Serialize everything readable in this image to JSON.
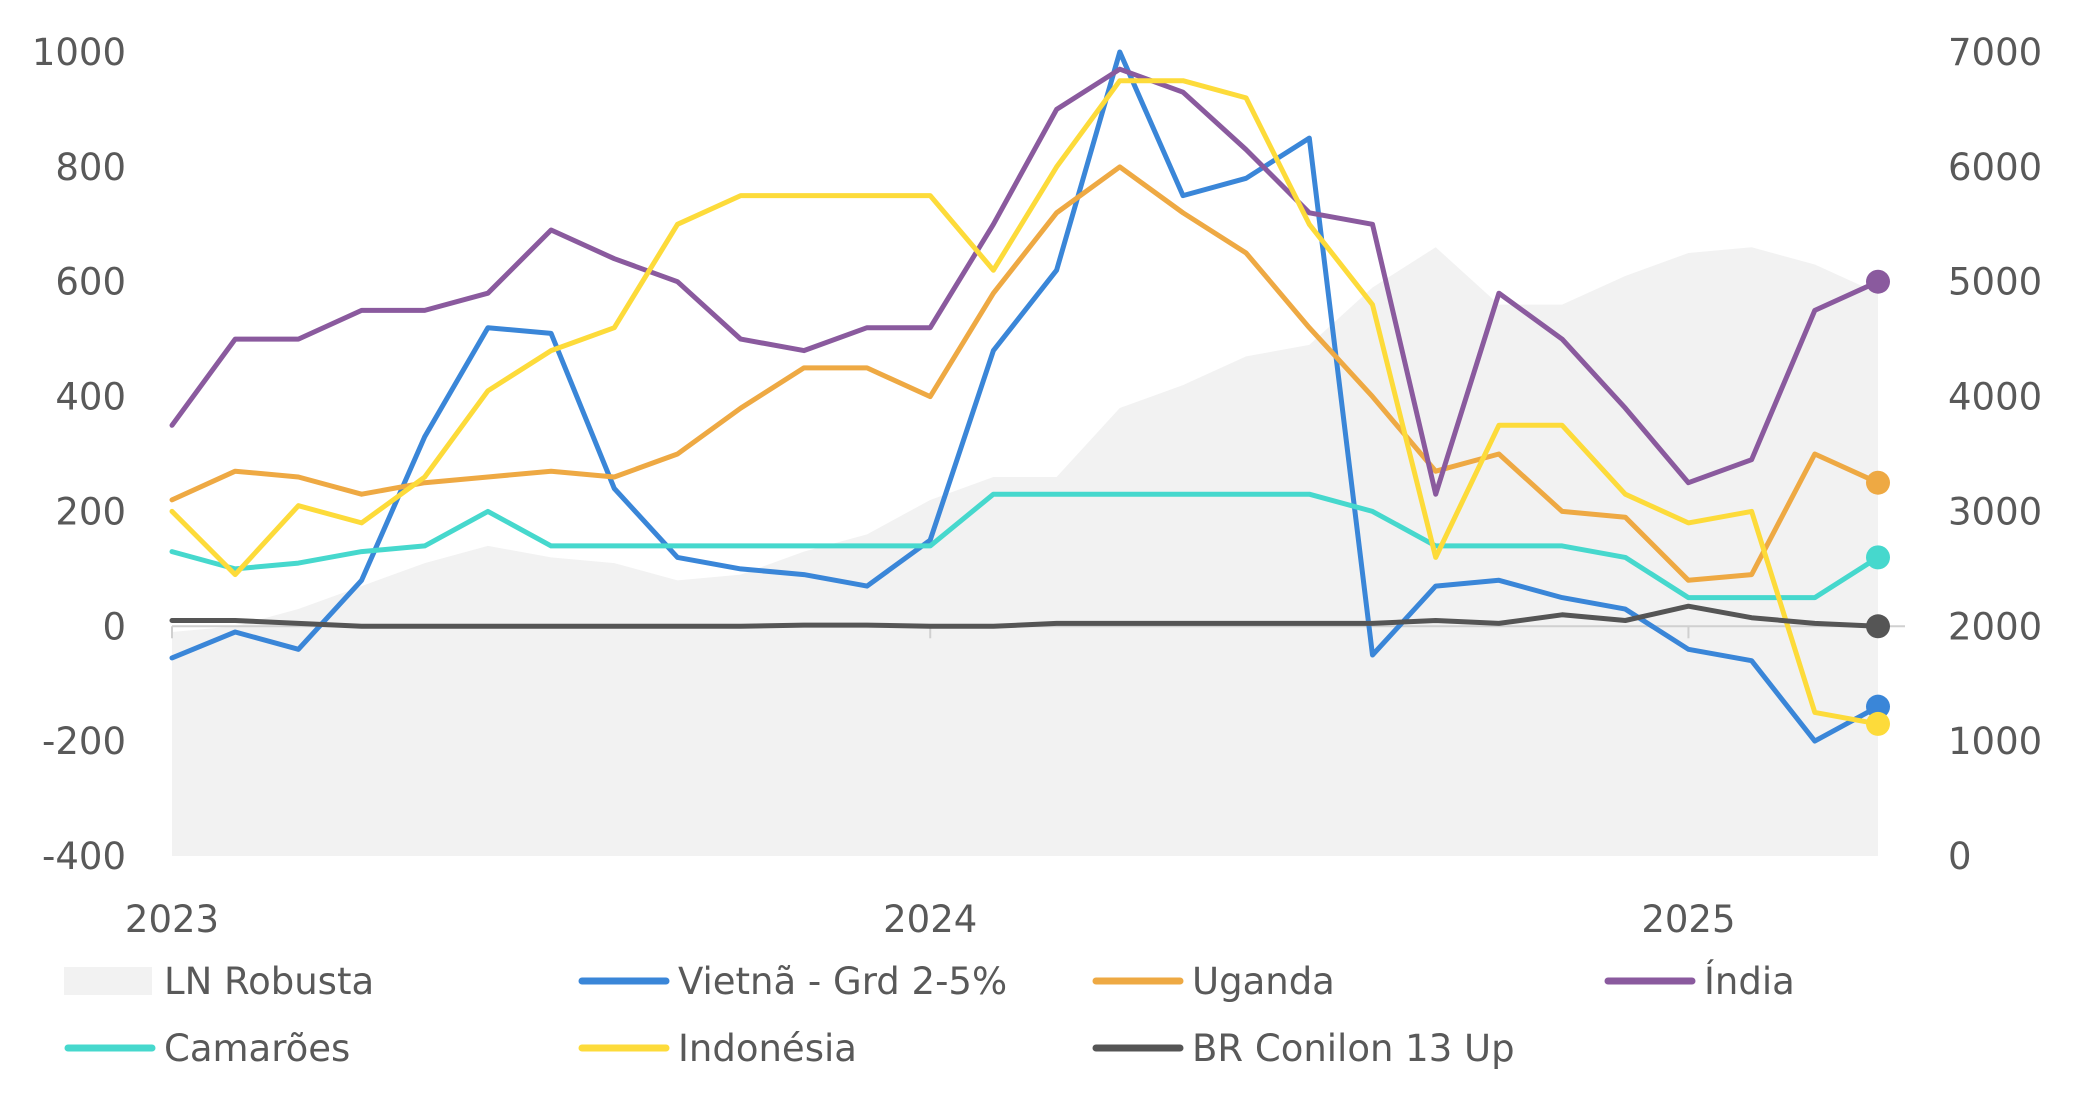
{
  "chart_data": {
    "type": "line",
    "x_start": "2023-01",
    "x_end": "2025-04",
    "x_ticks": [
      {
        "label": "2023",
        "date": "2023-01"
      },
      {
        "label": "2024",
        "date": "2024-01"
      },
      {
        "label": "2025",
        "date": "2025-01"
      }
    ],
    "y_left": {
      "ticks": [
        "1000",
        "800",
        "600",
        "400",
        "200",
        "0",
        "-200",
        "-400"
      ],
      "range": [
        -400,
        1000
      ]
    },
    "y_right": {
      "ticks": [
        "7000",
        "6000",
        "5000",
        "4000",
        "3000",
        "2000",
        "1000",
        "0"
      ],
      "range": [
        0,
        7000
      ]
    },
    "legend": [
      {
        "label": "LN Robusta",
        "color": "#f2f2f2",
        "kind": "area"
      },
      {
        "label": "Vietnã - Grd 2-5%",
        "color": "#3a86d8",
        "kind": "line"
      },
      {
        "label": "Uganda",
        "color": "#eea943",
        "kind": "line"
      },
      {
        "label": "Índia",
        "color": "#8a5a9e",
        "kind": "line"
      },
      {
        "label": "Camarões",
        "color": "#46d8cd",
        "kind": "line"
      },
      {
        "label": "Indonésia",
        "color": "#fddb3a",
        "kind": "line"
      },
      {
        "label": "BR Conilon 13 Up",
        "color": "#555555",
        "kind": "line"
      }
    ],
    "area_series": {
      "name": "LN Robusta",
      "axis": "right",
      "x": [
        "2023-01",
        "2023-02",
        "2023-03",
        "2023-04",
        "2023-05",
        "2023-06",
        "2023-07",
        "2023-08",
        "2023-09",
        "2023-10",
        "2023-11",
        "2023-12",
        "2024-01",
        "2024-02",
        "2024-03",
        "2024-04",
        "2024-05",
        "2024-06",
        "2024-07",
        "2024-08",
        "2024-09",
        "2024-10",
        "2024-11",
        "2024-12",
        "2025-01",
        "2025-02",
        "2025-03",
        "2025-04"
      ],
      "values": [
        1950,
        2000,
        2150,
        2350,
        2550,
        2700,
        2600,
        2550,
        2400,
        2450,
        2650,
        2800,
        3100,
        3300,
        3300,
        3900,
        4100,
        4350,
        4450,
        4950,
        5300,
        4800,
        4800,
        5050,
        5250,
        5300,
        5150,
        4900
      ]
    },
    "series": [
      {
        "name": "Vietnã - Grd 2-5%",
        "color": "#3a86d8",
        "axis": "left",
        "x": [
          "2023-01",
          "2023-02",
          "2023-03",
          "2023-04",
          "2023-05",
          "2023-06",
          "2023-07",
          "2023-08",
          "2023-09",
          "2023-10",
          "2023-11",
          "2023-12",
          "2024-01",
          "2024-02",
          "2024-03",
          "2024-04",
          "2024-05",
          "2024-06",
          "2024-07",
          "2024-08",
          "2024-09",
          "2024-10",
          "2024-11",
          "2024-12",
          "2025-01",
          "2025-02",
          "2025-03",
          "2025-04"
        ],
        "values": [
          -55,
          -10,
          -40,
          80,
          330,
          520,
          510,
          240,
          120,
          100,
          90,
          70,
          150,
          480,
          620,
          1000,
          750,
          780,
          850,
          -50,
          70,
          80,
          50,
          30,
          -40,
          -60,
          -200,
          -140
        ]
      },
      {
        "name": "Uganda",
        "color": "#eea943",
        "axis": "left",
        "x": [
          "2023-01",
          "2023-02",
          "2023-03",
          "2023-04",
          "2023-05",
          "2023-06",
          "2023-07",
          "2023-08",
          "2023-09",
          "2023-10",
          "2023-11",
          "2023-12",
          "2024-01",
          "2024-02",
          "2024-03",
          "2024-04",
          "2024-05",
          "2024-06",
          "2024-07",
          "2024-08",
          "2024-09",
          "2024-10",
          "2024-11",
          "2024-12",
          "2025-01",
          "2025-02",
          "2025-03",
          "2025-04"
        ],
        "values": [
          220,
          270,
          260,
          230,
          250,
          260,
          270,
          260,
          300,
          380,
          450,
          450,
          400,
          580,
          720,
          800,
          720,
          650,
          520,
          400,
          270,
          300,
          200,
          190,
          80,
          90,
          300,
          250
        ]
      },
      {
        "name": "Índia",
        "color": "#8a5a9e",
        "axis": "left",
        "x": [
          "2023-01",
          "2023-02",
          "2023-03",
          "2023-04",
          "2023-05",
          "2023-06",
          "2023-07",
          "2023-08",
          "2023-09",
          "2023-10",
          "2023-11",
          "2023-12",
          "2024-01",
          "2024-02",
          "2024-03",
          "2024-04",
          "2024-05",
          "2024-06",
          "2024-07",
          "2024-08",
          "2024-09",
          "2024-10",
          "2024-11",
          "2024-12",
          "2025-01",
          "2025-02",
          "2025-03",
          "2025-04"
        ],
        "values": [
          350,
          500,
          500,
          550,
          550,
          580,
          690,
          640,
          600,
          500,
          480,
          520,
          520,
          700,
          900,
          970,
          930,
          830,
          720,
          700,
          230,
          580,
          500,
          380,
          250,
          290,
          550,
          600
        ]
      },
      {
        "name": "Camarões",
        "color": "#46d8cd",
        "axis": "left",
        "x": [
          "2023-01",
          "2023-02",
          "2023-03",
          "2023-04",
          "2023-05",
          "2023-06",
          "2023-07",
          "2023-08",
          "2023-09",
          "2023-10",
          "2023-11",
          "2023-12",
          "2024-01",
          "2024-02",
          "2024-03",
          "2024-04",
          "2024-05",
          "2024-06",
          "2024-07",
          "2024-08",
          "2024-09",
          "2024-10",
          "2024-11",
          "2024-12",
          "2025-01",
          "2025-02",
          "2025-03",
          "2025-04"
        ],
        "values": [
          130,
          100,
          110,
          130,
          140,
          200,
          140,
          140,
          140,
          140,
          140,
          140,
          140,
          230,
          230,
          230,
          230,
          230,
          230,
          200,
          140,
          140,
          140,
          120,
          50,
          50,
          50,
          120
        ]
      },
      {
        "name": "Indonésia",
        "color": "#fddb3a",
        "axis": "left",
        "x": [
          "2023-01",
          "2023-02",
          "2023-03",
          "2023-04",
          "2023-05",
          "2023-06",
          "2023-07",
          "2023-08",
          "2023-09",
          "2023-10",
          "2023-11",
          "2023-12",
          "2024-01",
          "2024-02",
          "2024-03",
          "2024-04",
          "2024-05",
          "2024-06",
          "2024-07",
          "2024-08",
          "2024-09",
          "2024-10",
          "2024-11",
          "2024-12",
          "2025-01",
          "2025-02",
          "2025-03",
          "2025-04"
        ],
        "values": [
          200,
          90,
          210,
          180,
          260,
          410,
          480,
          520,
          700,
          750,
          750,
          750,
          750,
          620,
          800,
          950,
          950,
          920,
          700,
          560,
          120,
          350,
          350,
          230,
          180,
          200,
          -150,
          -170
        ]
      },
      {
        "name": "BR Conilon 13 Up",
        "color": "#555555",
        "axis": "left",
        "x": [
          "2023-01",
          "2023-02",
          "2023-03",
          "2023-04",
          "2023-05",
          "2023-06",
          "2023-07",
          "2023-08",
          "2023-09",
          "2023-10",
          "2023-11",
          "2023-12",
          "2024-01",
          "2024-02",
          "2024-03",
          "2024-04",
          "2024-05",
          "2024-06",
          "2024-07",
          "2024-08",
          "2024-09",
          "2024-10",
          "2024-11",
          "2024-12",
          "2025-01",
          "2025-02",
          "2025-03",
          "2025-04"
        ],
        "values": [
          10,
          10,
          5,
          0,
          0,
          0,
          0,
          0,
          0,
          0,
          2,
          2,
          0,
          0,
          5,
          5,
          5,
          5,
          5,
          5,
          10,
          5,
          20,
          10,
          35,
          15,
          5,
          0
        ]
      }
    ]
  }
}
